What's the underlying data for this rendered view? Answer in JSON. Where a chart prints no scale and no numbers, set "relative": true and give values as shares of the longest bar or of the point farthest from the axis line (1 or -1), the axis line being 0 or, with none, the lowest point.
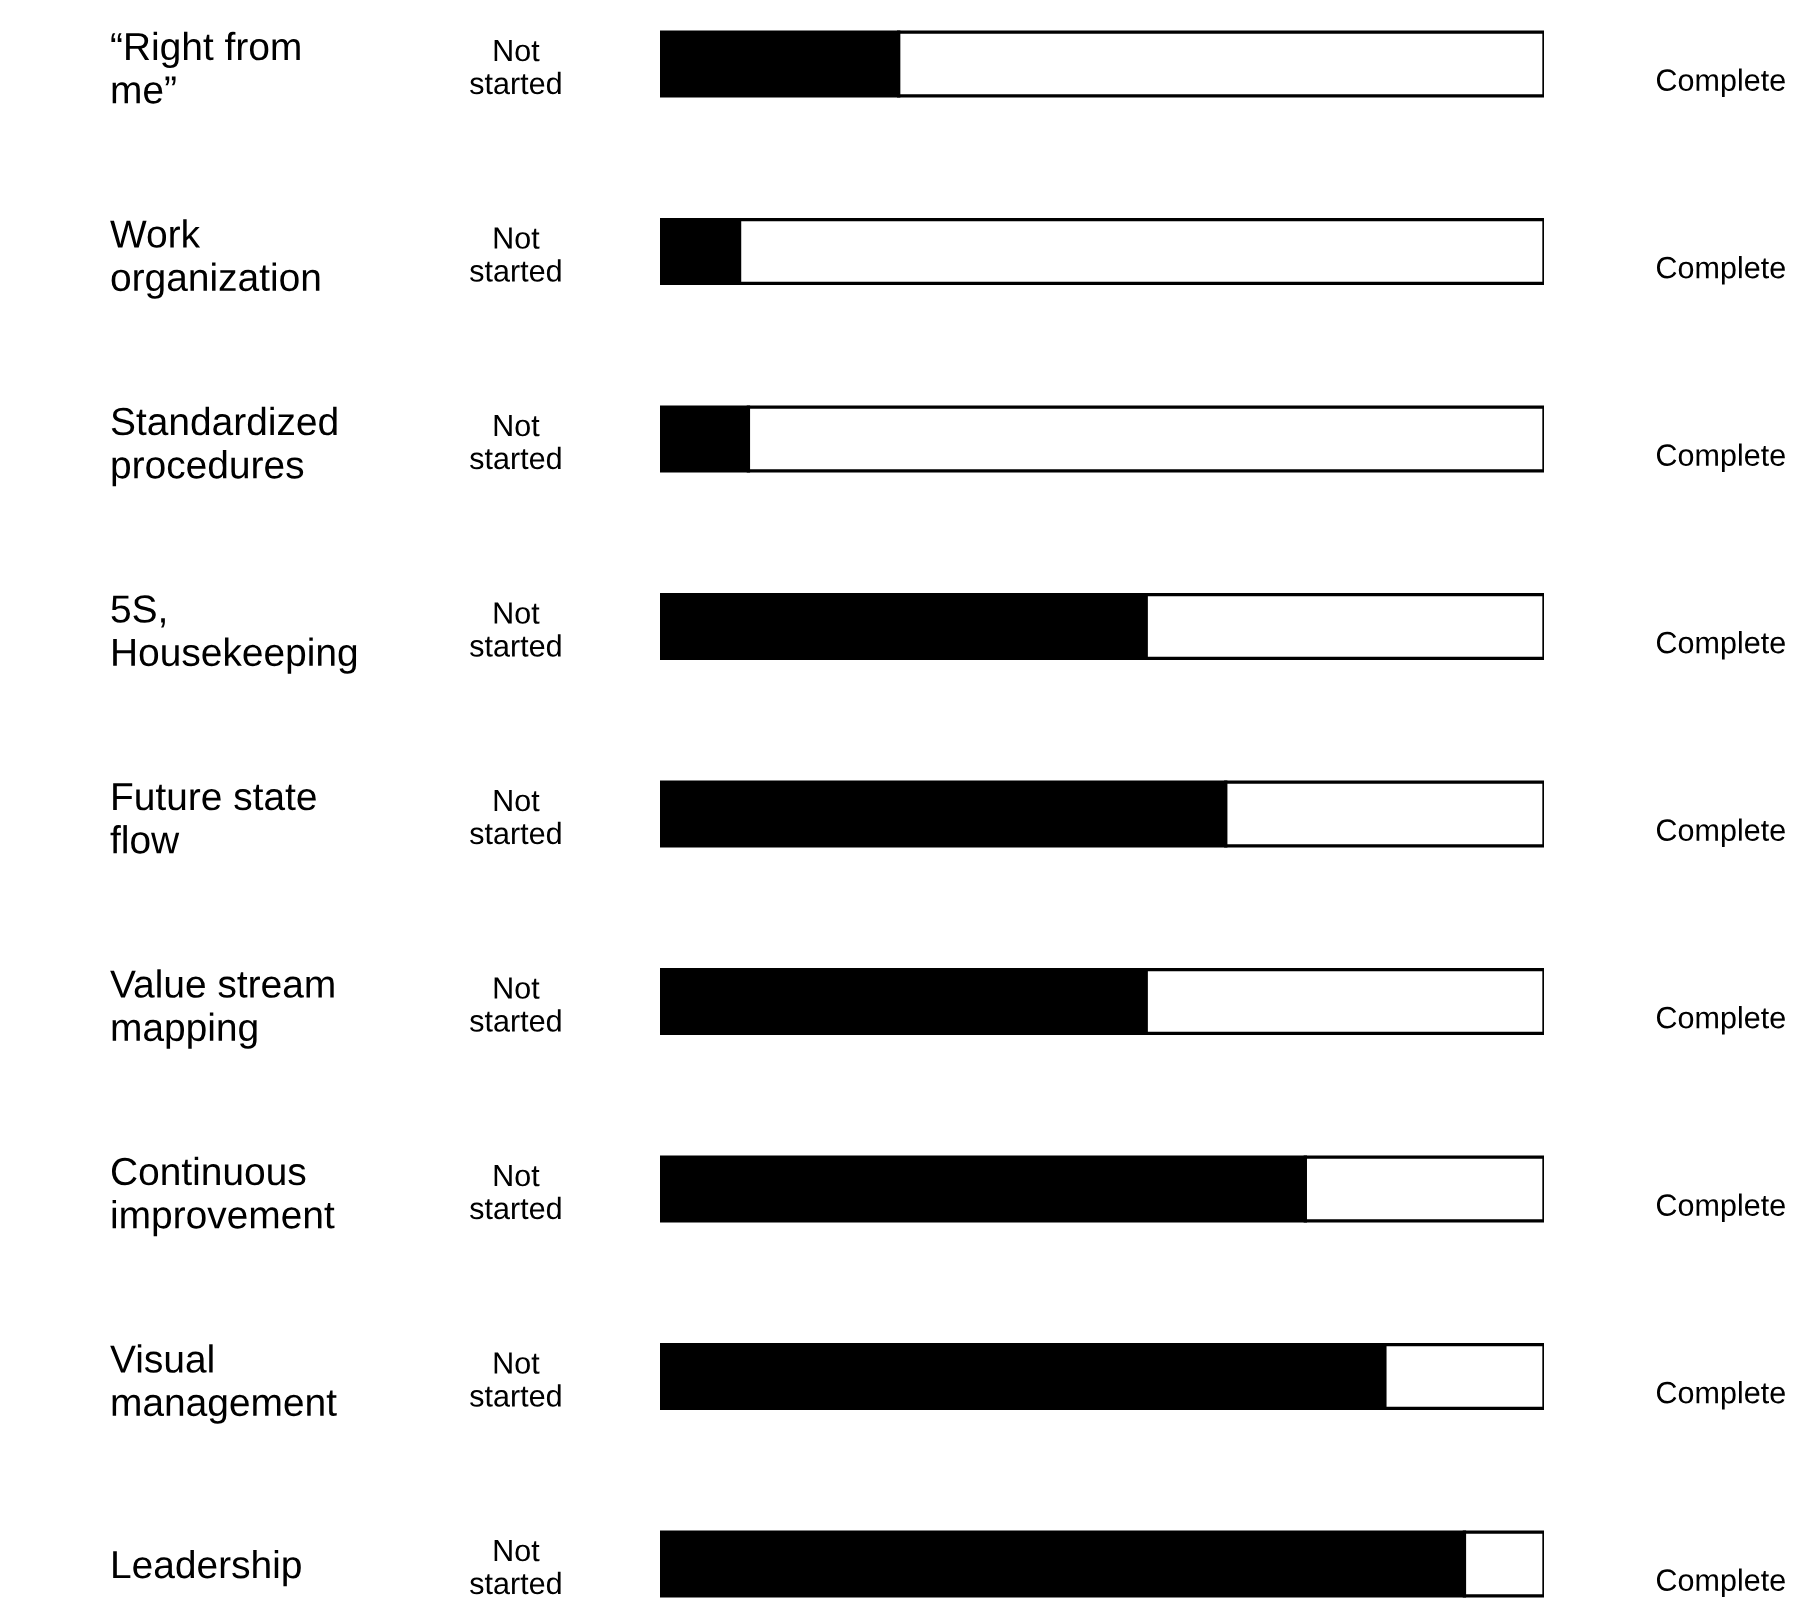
{
  "chart_data": {
    "type": "bar",
    "orientation": "horizontal",
    "stacked": true,
    "relative": true,
    "categories": [
      "“Right from\nme”",
      "Work\norganization",
      "Standardized\nprocedures",
      "5S,\nHousekeeping",
      "Future state\nflow",
      "Value stream\nmapping",
      "Continuous\nimprovement",
      "Visual\nmanagement",
      "Leadership"
    ],
    "series": [
      {
        "color": "#000000",
        "values": [
          0.27,
          0.09,
          0.1,
          0.55,
          0.64,
          0.55,
          0.73,
          0.82,
          0.91
        ]
      },
      {
        "color": "#ffffff",
        "values": [
          0.73,
          0.91,
          0.9,
          0.45,
          0.36,
          0.45,
          0.27,
          0.18,
          0.09
        ]
      }
    ],
    "annotations": [
      "Not\nstarted",
      "Complete",
      "Not\nstarted",
      "Complete",
      "Not\nstarted",
      "Complete",
      "Not\nstarted",
      "Complete",
      "Not\nstarted",
      "Complete",
      "Not\nstarted",
      "Complete",
      "Not\nstarted",
      "Complete",
      "Not\nstarted",
      "Complete",
      "Not\nstarted",
      "Complete"
    ],
    "grid": false
  }
}
